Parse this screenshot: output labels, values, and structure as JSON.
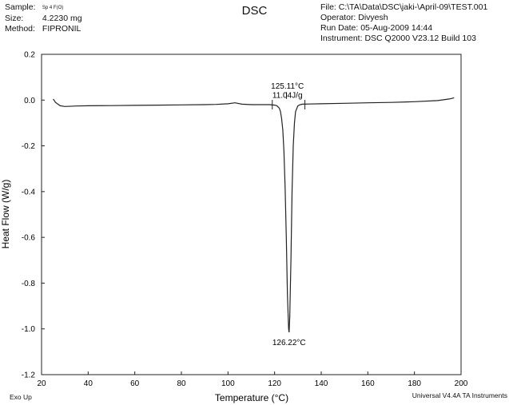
{
  "header": {
    "sample_label": "Sample:",
    "sample_value": "Sp 4 F(O)",
    "size_label": "Size:",
    "size_value": "4.2230 mg",
    "method_label": "Method:",
    "method_value": "FIPRONIL",
    "title": "DSC",
    "file": "File: C:\\TA\\Data\\DSC\\jaki-\\April-09\\TEST.001",
    "operator": "Operator: Divyesh",
    "run_date": "Run Date: 05-Aug-2009 14:44",
    "instrument": "Instrument: DSC Q2000 V23.12 Build 103"
  },
  "footer": {
    "left": "Exo Up",
    "right": "Universal V4.4A TA Instruments"
  },
  "chart_data": {
    "type": "line",
    "xlabel": "Temperature (°C)",
    "ylabel": "Heat Flow (W/g)",
    "xlim": [
      20,
      200
    ],
    "ylim": [
      -1.2,
      0.2
    ],
    "xticks": [
      20,
      40,
      60,
      80,
      100,
      120,
      140,
      160,
      180,
      200
    ],
    "yticks": [
      0.2,
      0.0,
      -0.2,
      -0.4,
      -0.6,
      -0.8,
      -1.0,
      -1.2
    ],
    "x": [
      25,
      26,
      28,
      30,
      35,
      40,
      50,
      60,
      70,
      80,
      90,
      95,
      100,
      103,
      106,
      110,
      115,
      118,
      120,
      121,
      122,
      122.5,
      123,
      123.5,
      124,
      124.5,
      125,
      125.5,
      126,
      126.2,
      126.5,
      127,
      127.5,
      128,
      128.5,
      129,
      130,
      131,
      132,
      135,
      140,
      150,
      160,
      170,
      180,
      190,
      195,
      197
    ],
    "y": [
      0.005,
      -0.01,
      -0.025,
      -0.028,
      -0.026,
      -0.025,
      -0.024,
      -0.023,
      -0.022,
      -0.021,
      -0.02,
      -0.019,
      -0.016,
      -0.012,
      -0.018,
      -0.02,
      -0.02,
      -0.02,
      -0.022,
      -0.025,
      -0.035,
      -0.05,
      -0.08,
      -0.13,
      -0.22,
      -0.38,
      -0.6,
      -0.85,
      -1.0,
      -1.015,
      -0.95,
      -0.7,
      -0.4,
      -0.2,
      -0.1,
      -0.05,
      -0.025,
      -0.02,
      -0.018,
      -0.017,
      -0.016,
      -0.014,
      -0.012,
      -0.01,
      -0.007,
      -0.002,
      0.005,
      0.01
    ],
    "annotations": [
      {
        "text": "125.11°C",
        "x": 125.5,
        "y": 0.06
      },
      {
        "text": "11.04J/g",
        "x": 125.5,
        "y": 0.02
      },
      {
        "text": "126.22°C",
        "x": 126.2,
        "y": -1.06
      }
    ],
    "integration_markers": [
      119,
      133
    ]
  }
}
